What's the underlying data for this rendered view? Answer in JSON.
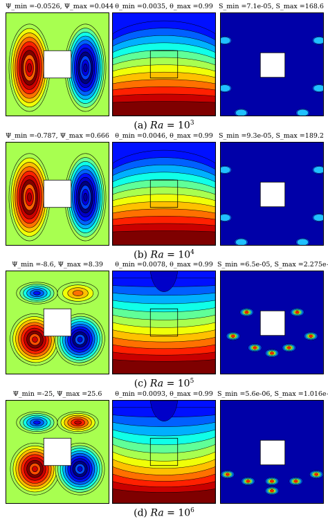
{
  "rows": [
    {
      "stream_label": "Ψ_min =-0.0526, Ψ_max =0.044",
      "temp_label": "θ_min =0.0035, θ_max =0.99",
      "entropy_label": "S_min =7.1e-05, S_max =168.6",
      "caption_prefix": "(a)",
      "caption_ra": "Ra",
      "caption_eq": "= 10",
      "caption_exp": "3"
    },
    {
      "stream_label": "Ψ_min =-0.787, Ψ_max =0.666",
      "temp_label": "θ_min =0.0046, θ_max =0.99",
      "entropy_label": "S_min =9.3e-05, S_max =189.2",
      "caption_prefix": "(b)",
      "caption_ra": "Ra",
      "caption_eq": "= 10",
      "caption_exp": "4"
    },
    {
      "stream_label": "Ψ_min =-8.6, Ψ_max =8.39",
      "temp_label": "θ_min =0.0078, θ_max =0.99",
      "entropy_label": "S_min =6.5e-05, S_max =2.275e+04",
      "caption_prefix": "(c)",
      "caption_ra": "Ra",
      "caption_eq": "= 10",
      "caption_exp": "5"
    },
    {
      "stream_label": "Ψ_min =-25, Ψ_max =25.6",
      "temp_label": "θ_min =0.0093, θ_max =0.99",
      "entropy_label": "S_min =5.6e-06, S_max =1.016e+07",
      "caption_prefix": "(d)",
      "caption_ra": "Ra",
      "caption_eq": "= 10",
      "caption_exp": "6"
    }
  ],
  "colors": {
    "jet_low": "#00007f",
    "jet_high": "#7f0000",
    "background_field": "#a8ff50",
    "obstacle": "#ffffff"
  }
}
